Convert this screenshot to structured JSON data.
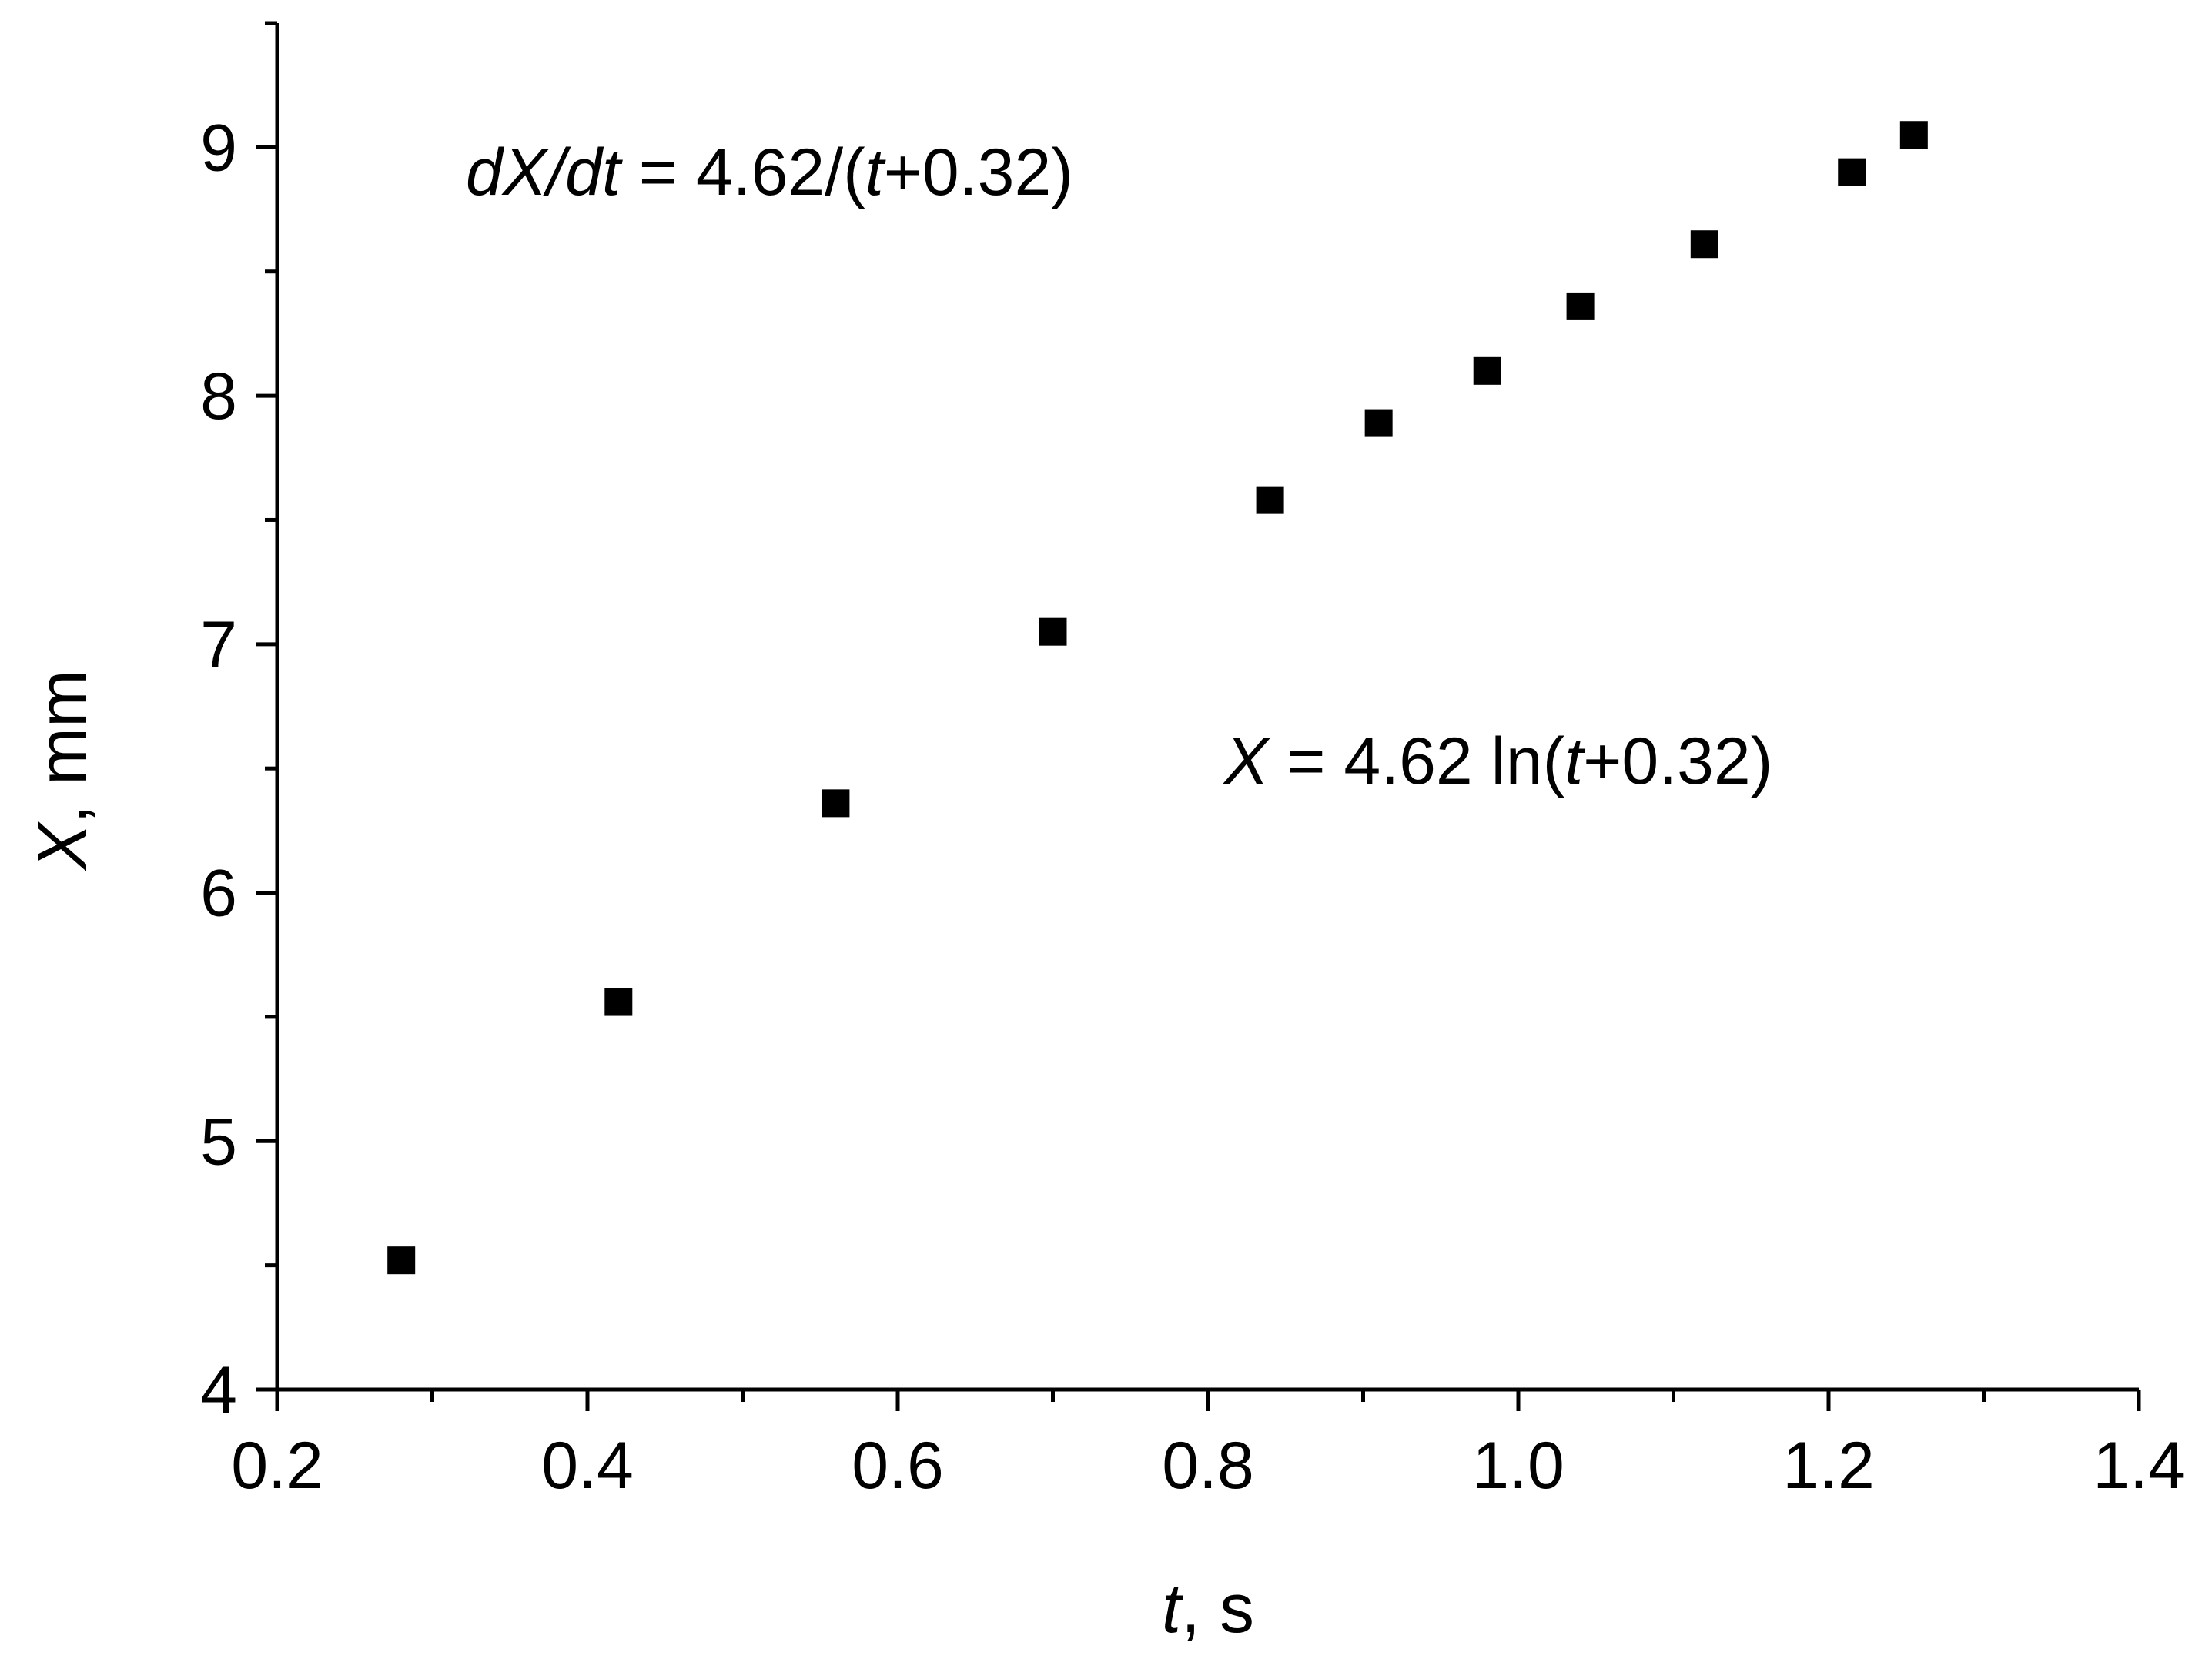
{
  "chart_data": {
    "type": "scatter",
    "title": "",
    "xlabel": {
      "var": "t",
      "unit": ", s"
    },
    "ylabel": {
      "var": "X",
      "unit": ", mm"
    },
    "xlim": [
      0.2,
      1.4
    ],
    "ylim": [
      4,
      9.5
    ],
    "x_ticks": [
      "0.2",
      "0.4",
      "0.6",
      "0.8",
      "1.0",
      "1.2",
      "1.4"
    ],
    "y_ticks": [
      "4",
      "5",
      "6",
      "7",
      "8",
      "9"
    ],
    "grid": false,
    "legend": "none",
    "marker_color": "#000000",
    "marker": "square",
    "series": [
      {
        "x": [
          0.28,
          0.42,
          0.56,
          0.7,
          0.84,
          0.91,
          0.98,
          1.04,
          1.12,
          1.215,
          1.255
        ],
        "y": [
          4.52,
          5.56,
          6.36,
          7.05,
          7.58,
          7.89,
          8.1,
          8.36,
          8.61,
          8.9,
          9.05
        ]
      }
    ],
    "annotations": [
      {
        "id": "derivative",
        "parts": [
          {
            "text": "dX",
            "italic": true
          },
          {
            "text": "/",
            "italic": true
          },
          {
            "text": "dt",
            "italic": true
          },
          {
            "text": " = 4.62/(",
            "italic": false
          },
          {
            "text": "t",
            "italic": true
          },
          {
            "text": "+0.32)",
            "italic": false
          }
        ]
      },
      {
        "id": "fit",
        "parts": [
          {
            "text": "X",
            "italic": true
          },
          {
            "text": " = 4.62 ln(",
            "italic": false
          },
          {
            "text": "t",
            "italic": true
          },
          {
            "text": "+0.32)",
            "italic": false
          }
        ]
      }
    ]
  }
}
